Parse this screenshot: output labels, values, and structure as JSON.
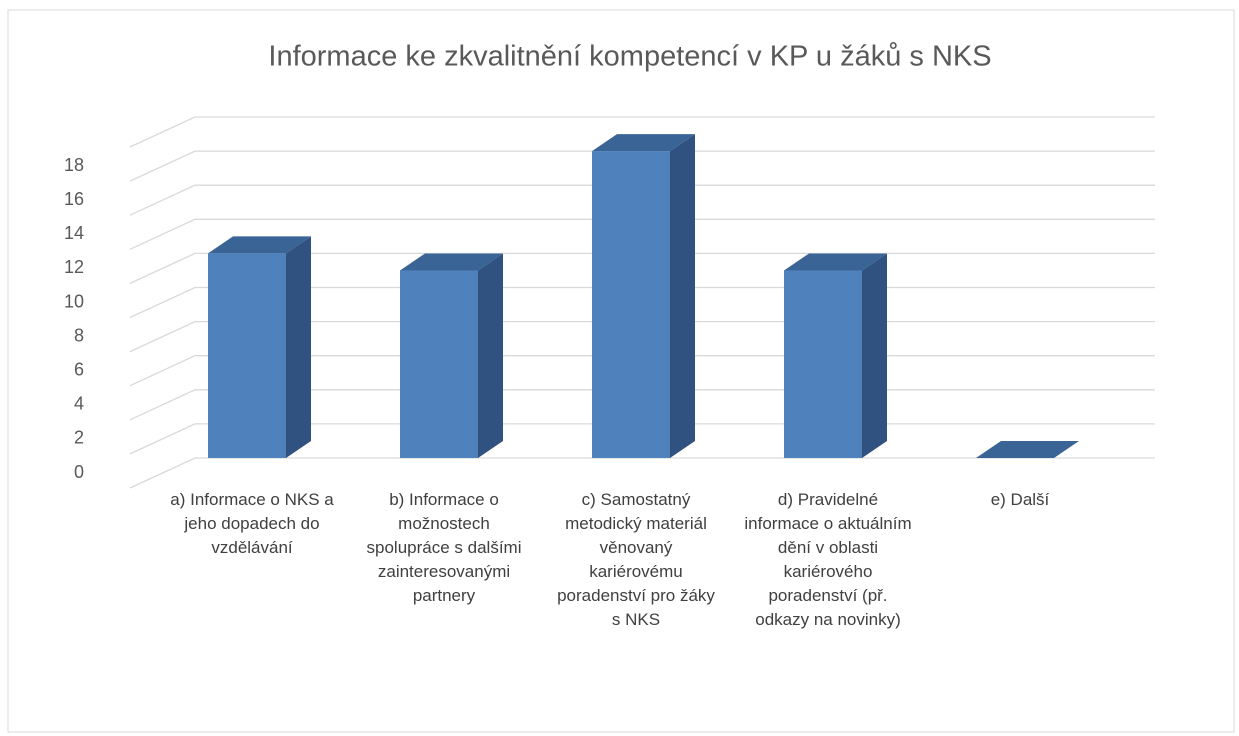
{
  "chart_data": {
    "type": "bar3d",
    "title": "Informace ke zkvalitnění kompetencí v KP u žáků s NKS",
    "categories": [
      "a) Informace o NKS a jeho dopadech do vzdělávání",
      "b) Informace o možnostech spolupráce s dalšími zainteresovanými partnery",
      "c) Samostatný metodický materiál věnovaný kariérovému poradenství pro žáky s NKS",
      "d) Pravidelné informace o aktuálním dění v oblasti kariérového poradenství (př. odkazy na novinky)",
      "e) Další"
    ],
    "values": [
      12,
      11,
      18,
      11,
      0
    ],
    "color": "#4f81bd",
    "ylim": [
      0,
      20
    ],
    "yticks": [
      0,
      2,
      4,
      6,
      8,
      10,
      12,
      14,
      16,
      18
    ],
    "grid": true
  }
}
